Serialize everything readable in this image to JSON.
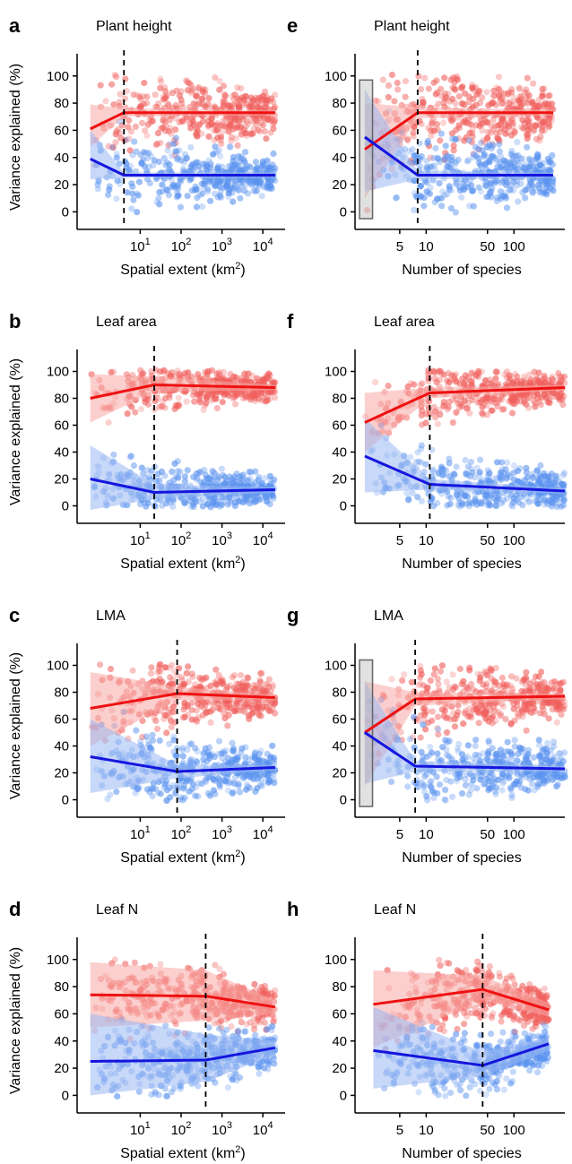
{
  "colors": {
    "red_points": "#f0605d",
    "blue_points": "#5b93ef",
    "red_line": "#ee1111",
    "blue_line": "#1515dd",
    "red_band": "#f7a7a4",
    "blue_band": "#9ab8f2",
    "axis": "#000000"
  },
  "chart_data": [
    {
      "panel": "a",
      "title": "Plant height",
      "type": "scatter",
      "ylabel": "Variance explained (%)",
      "xlabel": "Spatial extent (km²)",
      "xscale": "log",
      "xlim": [
        0.35,
        35000
      ],
      "ylim": [
        -5,
        115
      ],
      "xticks": [
        {
          "v": 10,
          "b": "10",
          "e": "1"
        },
        {
          "v": 100,
          "b": "10",
          "e": "2"
        },
        {
          "v": 1000,
          "b": "10",
          "e": "3"
        },
        {
          "v": 10000,
          "b": "10",
          "e": "4"
        }
      ],
      "yticks": [
        0,
        20,
        40,
        60,
        80,
        100
      ],
      "breakpoint": 4,
      "series": [
        {
          "color": "red",
          "line": [
            [
              0.6,
              61
            ],
            [
              4,
              73
            ],
            [
              20000,
              73
            ]
          ],
          "band_lo": [
            [
              0.6,
              48
            ],
            [
              4,
              70
            ],
            [
              20000,
              71
            ]
          ],
          "band_hi": [
            [
              0.6,
              79
            ],
            [
              4,
              76
            ],
            [
              20000,
              75
            ]
          ],
          "center": [
            0.6,
            20000
          ],
          "spread": 14,
          "tilt": 0
        },
        {
          "color": "blue",
          "line": [
            [
              0.6,
              39
            ],
            [
              4,
              27
            ],
            [
              20000,
              27
            ]
          ],
          "band_lo": [
            [
              0.6,
              24
            ],
            [
              4,
              25
            ],
            [
              20000,
              25
            ]
          ],
          "band_hi": [
            [
              0.6,
              60
            ],
            [
              4,
              29
            ],
            [
              20000,
              29
            ]
          ],
          "center": [
            0.6,
            20000
          ],
          "spread": 13,
          "tilt": 0
        }
      ]
    },
    {
      "panel": "e",
      "title": "Plant height",
      "type": "scatter",
      "ylabel": "",
      "xlabel": "Number of species",
      "xscale": "log",
      "xlim": [
        1.7,
        380
      ],
      "ylim": [
        -5,
        115
      ],
      "xticks": [
        {
          "v": 5,
          "b": "5"
        },
        {
          "v": 10,
          "b": "10"
        },
        {
          "v": 50,
          "b": "50"
        },
        {
          "v": 100,
          "b": "100"
        }
      ],
      "yticks": [
        0,
        20,
        40,
        60,
        80,
        100
      ],
      "breakpoint": 8,
      "highlight_box": [
        1.7,
        2.45,
        -5,
        97
      ],
      "series": [
        {
          "color": "red",
          "line": [
            [
              2,
              46
            ],
            [
              8,
              73
            ],
            [
              280,
              73
            ]
          ],
          "band_lo": [
            [
              2,
              10
            ],
            [
              8,
              69
            ],
            [
              280,
              71
            ]
          ],
          "band_hi": [
            [
              2,
              80
            ],
            [
              8,
              77
            ],
            [
              280,
              75
            ]
          ],
          "center": [
            2,
            280
          ],
          "spread": 16,
          "tilt": 0
        },
        {
          "color": "blue",
          "line": [
            [
              2,
              55
            ],
            [
              8,
              27
            ],
            [
              280,
              27
            ]
          ],
          "band_lo": [
            [
              2,
              15
            ],
            [
              8,
              24
            ],
            [
              280,
              25
            ]
          ],
          "band_hi": [
            [
              2,
              90
            ],
            [
              8,
              30
            ],
            [
              280,
              29
            ]
          ],
          "center": [
            2,
            280
          ],
          "spread": 15,
          "tilt": 0
        }
      ]
    },
    {
      "panel": "b",
      "title": "Leaf area",
      "type": "scatter",
      "ylabel": "Variance explained (%)",
      "xlabel": "Spatial extent (km²)",
      "xscale": "log",
      "xlim": [
        0.35,
        35000
      ],
      "ylim": [
        -5,
        115
      ],
      "xticks": [
        {
          "v": 10,
          "b": "10",
          "e": "1"
        },
        {
          "v": 100,
          "b": "10",
          "e": "2"
        },
        {
          "v": 1000,
          "b": "10",
          "e": "3"
        },
        {
          "v": 10000,
          "b": "10",
          "e": "4"
        }
      ],
      "yticks": [
        0,
        20,
        40,
        60,
        80,
        100
      ],
      "breakpoint": 22,
      "series": [
        {
          "color": "red",
          "line": [
            [
              0.6,
              80
            ],
            [
              22,
              90
            ],
            [
              20000,
              88
            ]
          ],
          "band_lo": [
            [
              0.6,
              62
            ],
            [
              22,
              85
            ],
            [
              20000,
              86
            ]
          ],
          "band_hi": [
            [
              0.6,
              98
            ],
            [
              22,
              96
            ],
            [
              20000,
              90
            ]
          ],
          "center": [
            0.6,
            20000
          ],
          "spread": 9,
          "tilt": 0
        },
        {
          "color": "blue",
          "line": [
            [
              0.6,
              20
            ],
            [
              22,
              10
            ],
            [
              20000,
              12
            ]
          ],
          "band_lo": [
            [
              0.6,
              -3
            ],
            [
              22,
              5
            ],
            [
              20000,
              10
            ]
          ],
          "band_hi": [
            [
              0.6,
              45
            ],
            [
              22,
              16
            ],
            [
              20000,
              14
            ]
          ],
          "center": [
            0.6,
            20000
          ],
          "spread": 10,
          "tilt": 0
        }
      ]
    },
    {
      "panel": "f",
      "title": "Leaf area",
      "type": "scatter",
      "ylabel": "",
      "xlabel": "Number of species",
      "xscale": "log",
      "xlim": [
        1.7,
        380
      ],
      "ylim": [
        -5,
        115
      ],
      "xticks": [
        {
          "v": 5,
          "b": "5"
        },
        {
          "v": 10,
          "b": "10"
        },
        {
          "v": 50,
          "b": "50"
        },
        {
          "v": 100,
          "b": "100"
        }
      ],
      "yticks": [
        0,
        20,
        40,
        60,
        80,
        100
      ],
      "breakpoint": 11,
      "series": [
        {
          "color": "red",
          "line": [
            [
              2,
              62
            ],
            [
              11,
              84
            ],
            [
              380,
              88
            ]
          ],
          "band_lo": [
            [
              2,
              40
            ],
            [
              11,
              80
            ],
            [
              380,
              86
            ]
          ],
          "band_hi": [
            [
              2,
              84
            ],
            [
              11,
              88
            ],
            [
              380,
              90
            ]
          ],
          "center": [
            2,
            380
          ],
          "spread": 11,
          "tilt": 0
        },
        {
          "color": "blue",
          "line": [
            [
              2,
              37
            ],
            [
              11,
              16
            ],
            [
              380,
              11
            ]
          ],
          "band_lo": [
            [
              2,
              10
            ],
            [
              11,
              12
            ],
            [
              380,
              9
            ]
          ],
          "band_hi": [
            [
              2,
              65
            ],
            [
              11,
              20
            ],
            [
              380,
              13
            ]
          ],
          "center": [
            2,
            380
          ],
          "spread": 12,
          "tilt": 0
        }
      ]
    },
    {
      "panel": "c",
      "title": "LMA",
      "type": "scatter",
      "ylabel": "Variance explained (%)",
      "xlabel": "Spatial extent (km²)",
      "xscale": "log",
      "xlim": [
        0.35,
        35000
      ],
      "ylim": [
        -5,
        115
      ],
      "xticks": [
        {
          "v": 10,
          "b": "10",
          "e": "1"
        },
        {
          "v": 100,
          "b": "10",
          "e": "2"
        },
        {
          "v": 1000,
          "b": "10",
          "e": "3"
        },
        {
          "v": 10000,
          "b": "10",
          "e": "4"
        }
      ],
      "yticks": [
        0,
        20,
        40,
        60,
        80,
        100
      ],
      "breakpoint": 80,
      "series": [
        {
          "color": "red",
          "line": [
            [
              0.6,
              68
            ],
            [
              80,
              79
            ],
            [
              20000,
              76
            ]
          ],
          "band_lo": [
            [
              0.6,
              40
            ],
            [
              80,
              74
            ],
            [
              20000,
              74
            ]
          ],
          "band_hi": [
            [
              0.6,
              95
            ],
            [
              80,
              84
            ],
            [
              20000,
              78
            ]
          ],
          "center": [
            0.6,
            20000
          ],
          "spread": 13,
          "tilt": 0
        },
        {
          "color": "blue",
          "line": [
            [
              0.6,
              32
            ],
            [
              80,
              21
            ],
            [
              20000,
              24
            ]
          ],
          "band_lo": [
            [
              0.6,
              5
            ],
            [
              80,
              16
            ],
            [
              20000,
              22
            ]
          ],
          "band_hi": [
            [
              0.6,
              60
            ],
            [
              80,
              26
            ],
            [
              20000,
              26
            ]
          ],
          "center": [
            0.6,
            20000
          ],
          "spread": 13,
          "tilt": 0
        }
      ]
    },
    {
      "panel": "g",
      "title": "LMA",
      "type": "scatter",
      "ylabel": "",
      "xlabel": "Number of species",
      "xscale": "log",
      "xlim": [
        1.7,
        380
      ],
      "ylim": [
        -5,
        115
      ],
      "xticks": [
        {
          "v": 5,
          "b": "5"
        },
        {
          "v": 10,
          "b": "10"
        },
        {
          "v": 50,
          "b": "50"
        },
        {
          "v": 100,
          "b": "100"
        }
      ],
      "yticks": [
        0,
        20,
        40,
        60,
        80,
        100
      ],
      "breakpoint": 7.5,
      "highlight_box": [
        1.7,
        2.45,
        -5,
        104
      ],
      "series": [
        {
          "color": "red",
          "line": [
            [
              2,
              50
            ],
            [
              7.5,
              75
            ],
            [
              380,
              77
            ]
          ],
          "band_lo": [
            [
              2,
              10
            ],
            [
              7.5,
              70
            ],
            [
              380,
              75
            ]
          ],
          "band_hi": [
            [
              2,
              88
            ],
            [
              7.5,
              80
            ],
            [
              380,
              79
            ]
          ],
          "center": [
            2,
            380
          ],
          "spread": 14,
          "tilt": 0
        },
        {
          "color": "blue",
          "line": [
            [
              2,
              50
            ],
            [
              7.5,
              25
            ],
            [
              380,
              23
            ]
          ],
          "band_lo": [
            [
              2,
              12
            ],
            [
              7.5,
              21
            ],
            [
              380,
              21
            ]
          ],
          "band_hi": [
            [
              2,
              88
            ],
            [
              7.5,
              29
            ],
            [
              380,
              25
            ]
          ],
          "center": [
            2,
            380
          ],
          "spread": 14,
          "tilt": 0
        }
      ]
    },
    {
      "panel": "d",
      "title": "Leaf N",
      "type": "scatter",
      "ylabel": "Variance explained (%)",
      "xlabel": "Spatial extent (km²)",
      "xscale": "log",
      "xlim": [
        0.35,
        35000
      ],
      "ylim": [
        -5,
        115
      ],
      "xticks": [
        {
          "v": 10,
          "b": "10",
          "e": "1"
        },
        {
          "v": 100,
          "b": "10",
          "e": "2"
        },
        {
          "v": 1000,
          "b": "10",
          "e": "3"
        },
        {
          "v": 10000,
          "b": "10",
          "e": "4"
        }
      ],
      "yticks": [
        0,
        20,
        40,
        60,
        80,
        100
      ],
      "breakpoint": 400,
      "series": [
        {
          "color": "red",
          "line": [
            [
              0.6,
              74
            ],
            [
              400,
              73
            ],
            [
              20000,
              65
            ]
          ],
          "band_lo": [
            [
              0.6,
              50
            ],
            [
              400,
              55
            ],
            [
              20000,
              60
            ]
          ],
          "band_hi": [
            [
              0.6,
              98
            ],
            [
              400,
              92
            ],
            [
              20000,
              70
            ]
          ],
          "center": [
            0.6,
            20000
          ],
          "spread": 13,
          "tilt": 0
        },
        {
          "color": "blue",
          "line": [
            [
              0.6,
              25
            ],
            [
              400,
              26
            ],
            [
              20000,
              35
            ]
          ],
          "band_lo": [
            [
              0.6,
              0
            ],
            [
              400,
              10
            ],
            [
              20000,
              30
            ]
          ],
          "band_hi": [
            [
              0.6,
              60
            ],
            [
              400,
              45
            ],
            [
              20000,
              40
            ]
          ],
          "center": [
            0.6,
            20000
          ],
          "spread": 13,
          "tilt": 0
        }
      ]
    },
    {
      "panel": "h",
      "title": "Leaf N",
      "type": "scatter",
      "ylabel": "",
      "xlabel": "Number of species",
      "xscale": "log",
      "xlim": [
        1.7,
        380
      ],
      "ylim": [
        -5,
        115
      ],
      "xticks": [
        {
          "v": 5,
          "b": "5"
        },
        {
          "v": 10,
          "b": "10"
        },
        {
          "v": 50,
          "b": "50"
        },
        {
          "v": 100,
          "b": "100"
        }
      ],
      "yticks": [
        0,
        20,
        40,
        60,
        80,
        100
      ],
      "breakpoint": 44,
      "series": [
        {
          "color": "red",
          "line": [
            [
              2.5,
              67
            ],
            [
              44,
              78
            ],
            [
              250,
              63
            ]
          ],
          "band_lo": [
            [
              2.5,
              35
            ],
            [
              44,
              70
            ],
            [
              250,
              58
            ]
          ],
          "band_hi": [
            [
              2.5,
              92
            ],
            [
              44,
              88
            ],
            [
              250,
              68
            ]
          ],
          "center": [
            2.5,
            250
          ],
          "spread": 14,
          "tilt": 0
        },
        {
          "color": "blue",
          "line": [
            [
              2.5,
              33
            ],
            [
              44,
              22
            ],
            [
              250,
              38
            ]
          ],
          "band_lo": [
            [
              2.5,
              5
            ],
            [
              44,
              14
            ],
            [
              250,
              33
            ]
          ],
          "band_hi": [
            [
              2.5,
              65
            ],
            [
              44,
              32
            ],
            [
              250,
              43
            ]
          ],
          "center": [
            2.5,
            250
          ],
          "spread": 13,
          "tilt": 0
        }
      ]
    }
  ]
}
